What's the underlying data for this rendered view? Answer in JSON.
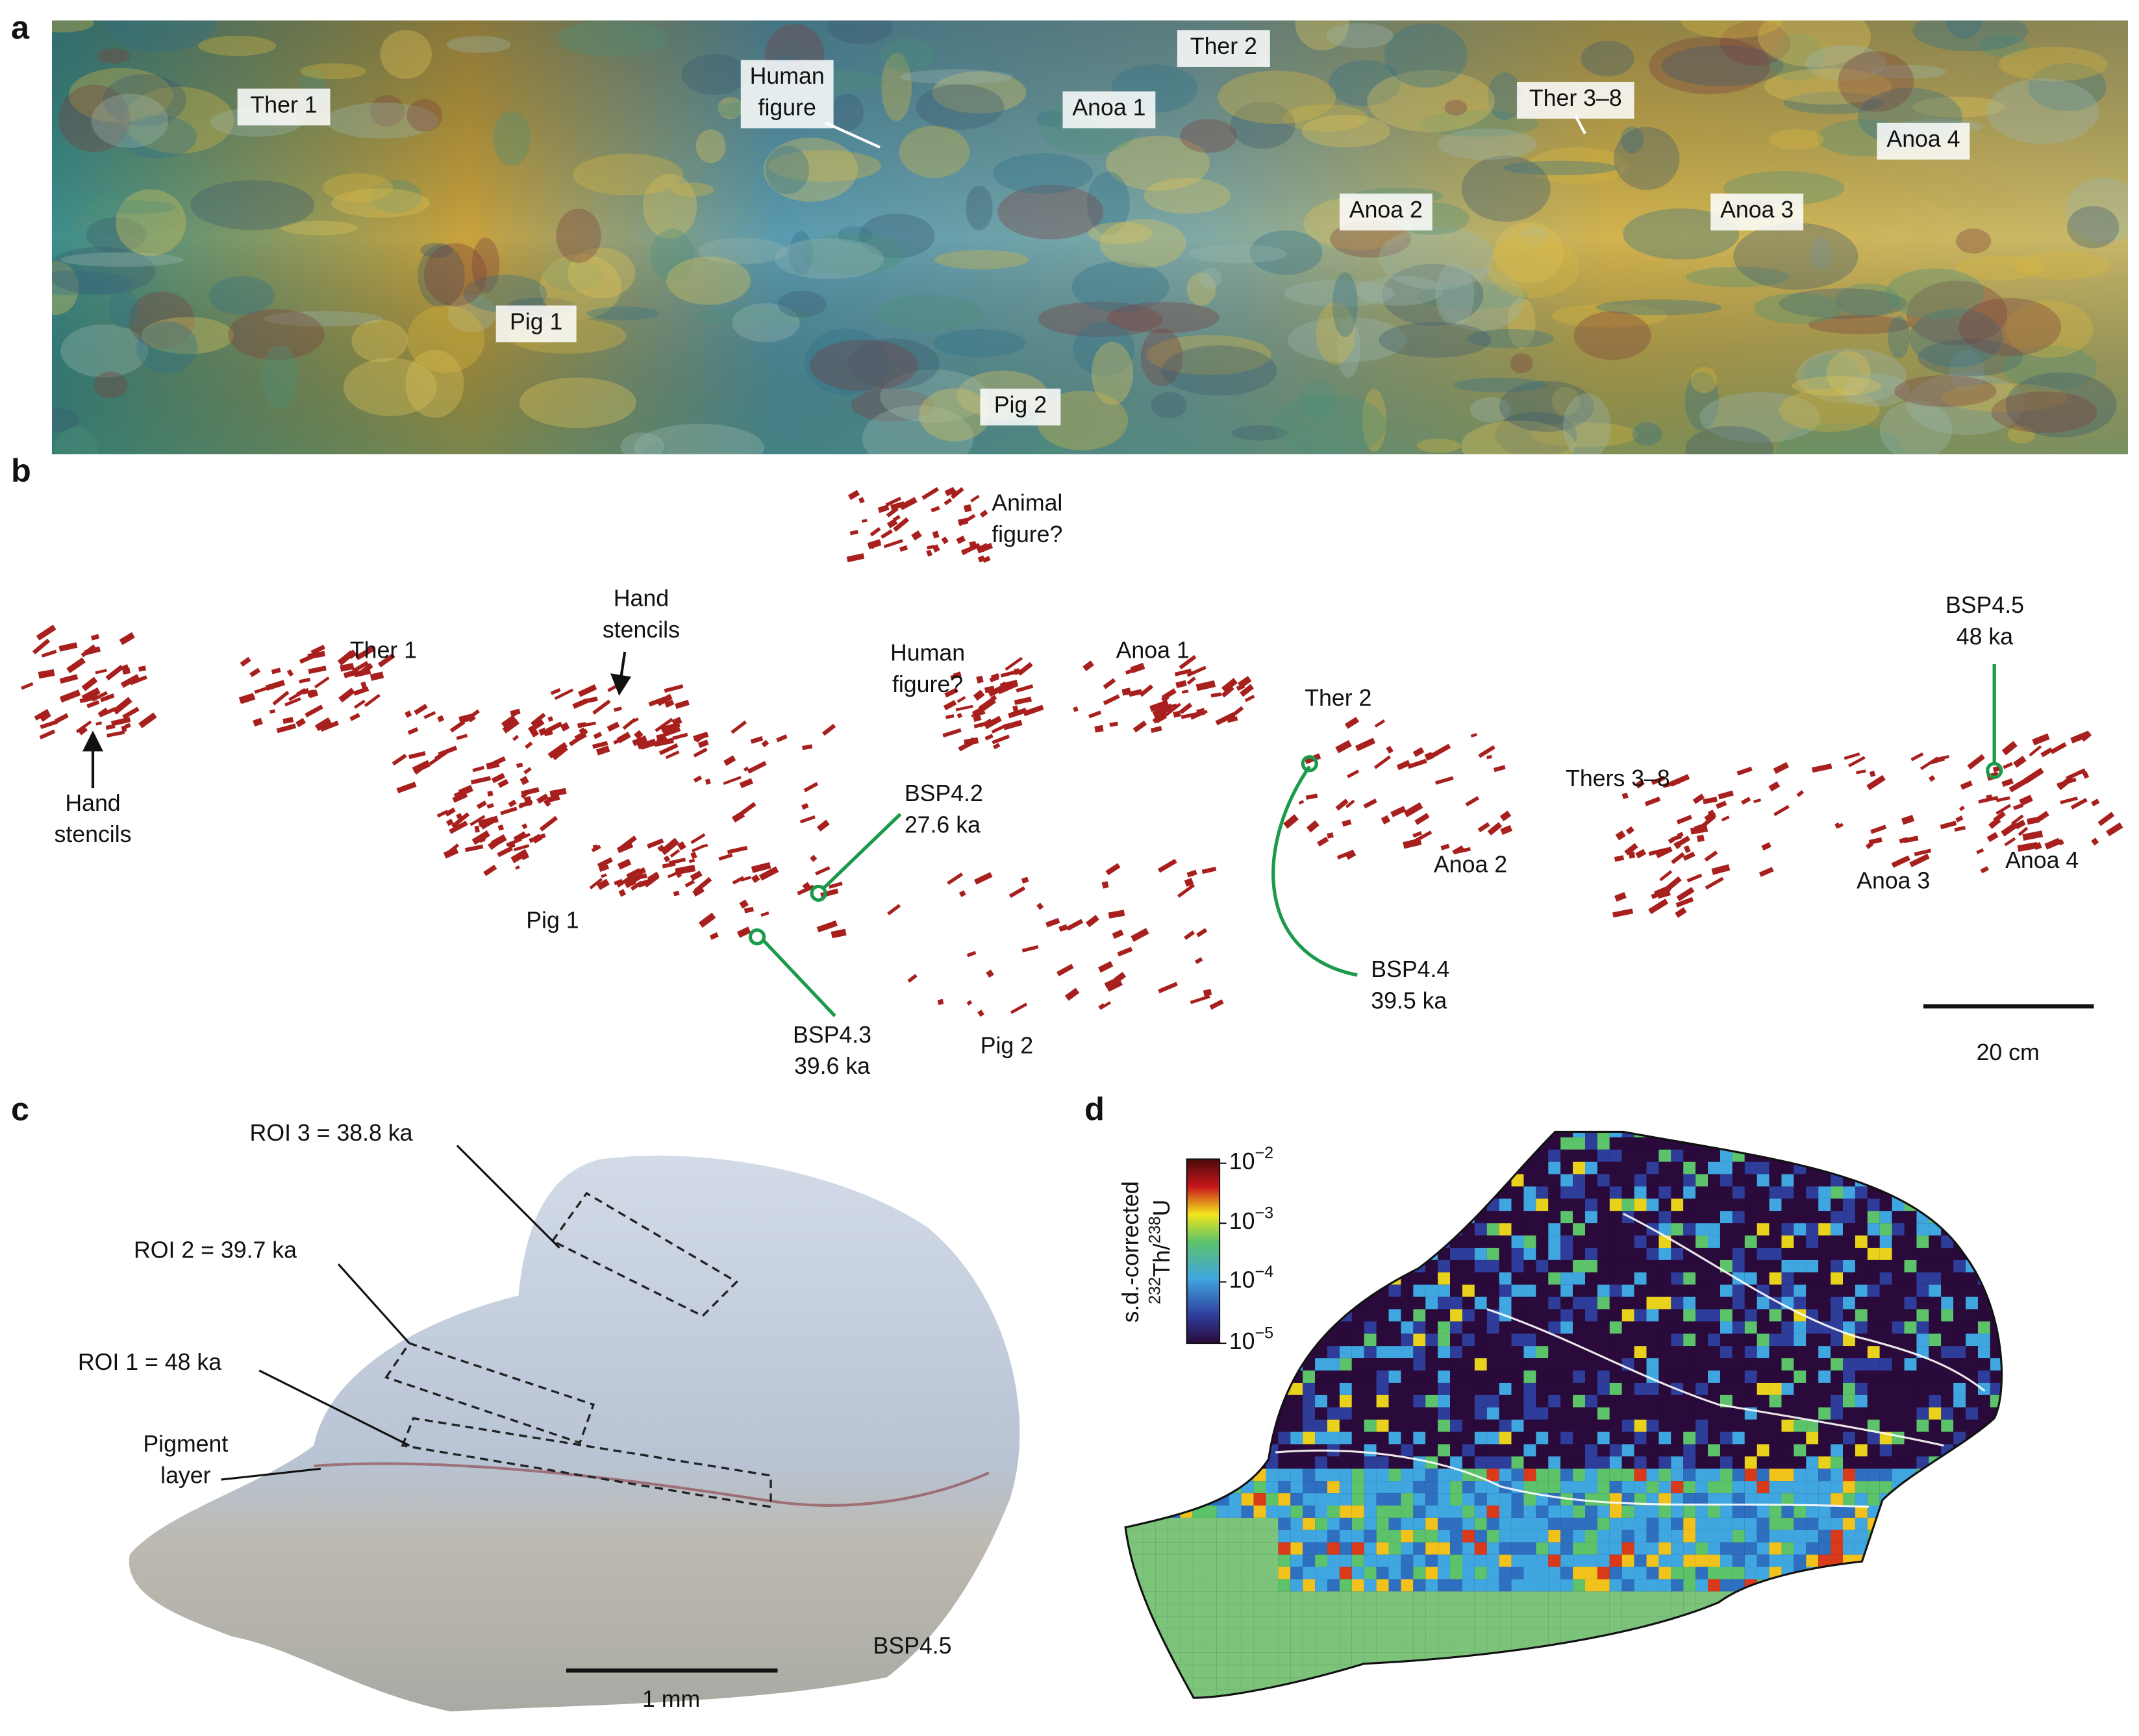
{
  "panels": {
    "a": {
      "letter": "a",
      "labels": [
        [
          "Ther 1"
        ],
        [
          "Human",
          "figure"
        ],
        [
          "Ther 2"
        ],
        [
          "Anoa 1"
        ],
        [
          "Ther 3–8"
        ],
        [
          "Anoa 4"
        ],
        [
          "Anoa 2"
        ],
        [
          "Anoa 3"
        ],
        [
          "Pig 1"
        ],
        [
          "Pig 2"
        ]
      ]
    },
    "b": {
      "letter": "b",
      "labels": [
        [
          "Animal",
          "figure?"
        ],
        [
          "Hand",
          "stencils"
        ],
        [
          "Ther 1"
        ],
        [
          "Hand",
          "stencils"
        ],
        [
          "Human",
          "figure?"
        ],
        [
          "Anoa 1"
        ],
        [
          "Ther 2"
        ],
        [
          "BSP4.5",
          "48 ka"
        ],
        [
          "Thers 3–8"
        ],
        [
          "BSP4.2",
          "27.6 ka"
        ],
        [
          "Anoa 2"
        ],
        [
          "Anoa 3"
        ],
        [
          "Anoa 4"
        ],
        [
          "Pig 1"
        ],
        [
          "BSP4.3",
          "39.6 ka"
        ],
        [
          "Pig 2"
        ],
        [
          "BSP4.4",
          "39.5 ka"
        ]
      ],
      "scale_bar": "20 cm"
    },
    "c": {
      "letter": "c",
      "labels": [
        [
          "ROI 3 = 38.8 ka"
        ],
        [
          "ROI 2 = 39.7 ka"
        ],
        [
          "ROI 1 = 48 ka"
        ],
        [
          "Pigment",
          "layer"
        ],
        [
          "BSP4.5"
        ]
      ],
      "scale_bar": "1 mm"
    },
    "d": {
      "letter": "d",
      "colorbar_label": {
        "line1": "s.d.-corrected",
        "sup1": "232",
        "el1": "Th/",
        "sup2": "238",
        "el2": "U"
      },
      "colorbar_ticks": [
        {
          "base": "10",
          "exp": "−2"
        },
        {
          "base": "10",
          "exp": "−3"
        },
        {
          "base": "10",
          "exp": "−4"
        },
        {
          "base": "10",
          "exp": "−5"
        }
      ]
    }
  }
}
